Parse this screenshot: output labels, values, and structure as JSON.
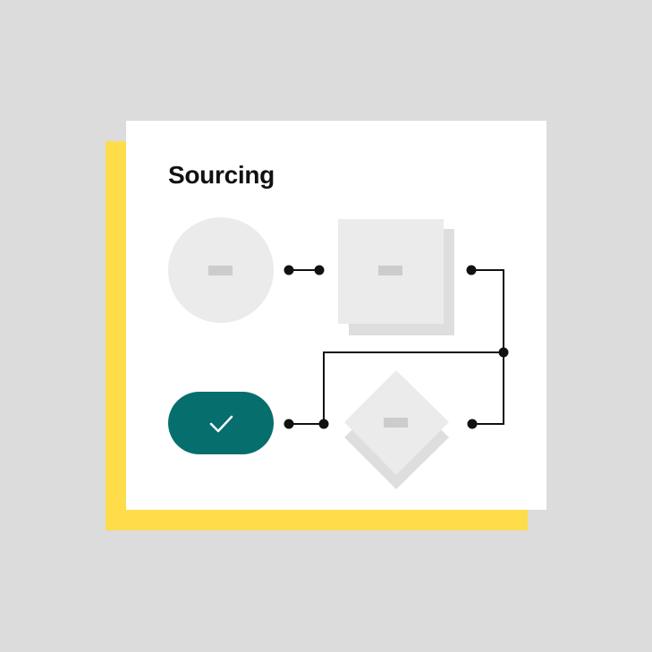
{
  "card": {
    "title": "Sourcing"
  },
  "colors": {
    "background": "#dcdcdc",
    "card": "#ffffff",
    "accent_yellow": "#ffdd4a",
    "node_fill": "#ebebeb",
    "node_shadow": "#dedede",
    "node_mark": "#cccccc",
    "success": "#066e6c",
    "connector": "#111111"
  },
  "nodes": {
    "start": {
      "kind": "circle",
      "icon": "minus-mark"
    },
    "process": {
      "kind": "square",
      "icon": "minus-mark"
    },
    "decision": {
      "kind": "diamond",
      "icon": "minus-mark"
    },
    "done": {
      "kind": "pill",
      "icon": "check-icon"
    }
  }
}
